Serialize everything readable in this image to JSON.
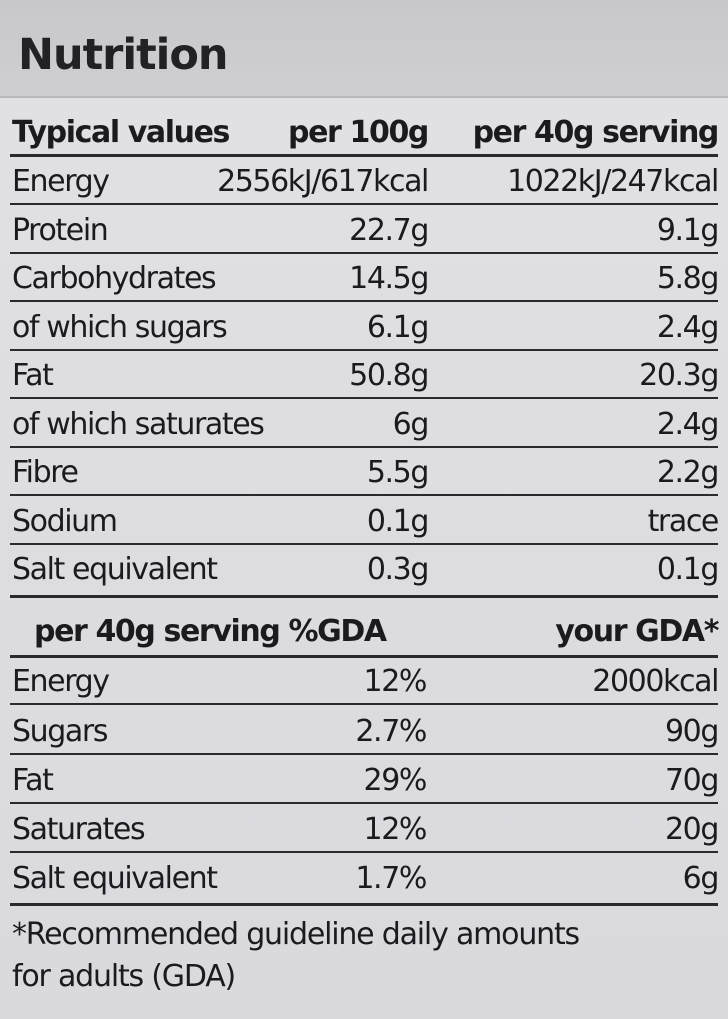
{
  "title": "Nutrition",
  "table": {
    "headers": [
      "Typical values",
      "per 100g",
      "per 40g serving"
    ],
    "rows": [
      [
        "Energy",
        "2556kJ/617kcal",
        "1022kJ/247kcal"
      ],
      [
        "Protein",
        "22.7g",
        "9.1g"
      ],
      [
        "Carbohydrates",
        "14.5g",
        "5.8g"
      ],
      [
        "of which sugars",
        "6.1g",
        "2.4g"
      ],
      [
        "Fat",
        "50.8g",
        "20.3g"
      ],
      [
        "of which saturates",
        "6g",
        "2.4g"
      ],
      [
        "Fibre",
        "5.5g",
        "2.2g"
      ],
      [
        "Sodium",
        "0.1g",
        "trace"
      ],
      [
        "Salt equivalent",
        "0.3g",
        "0.1g"
      ]
    ]
  },
  "gda": {
    "headers": [
      "per 40g serving %GDA",
      "your GDA*"
    ],
    "rows": [
      [
        "Energy",
        "12%",
        "2000kcal"
      ],
      [
        "Sugars",
        "2.7%",
        "90g"
      ],
      [
        "Fat",
        "29%",
        "70g"
      ],
      [
        "Saturates",
        "12%",
        "20g"
      ],
      [
        "Salt equivalent",
        "1.7%",
        "6g"
      ]
    ]
  },
  "footnote": {
    "line1": "*Recommended guideline daily amounts",
    "line2": "for adults (GDA)"
  }
}
